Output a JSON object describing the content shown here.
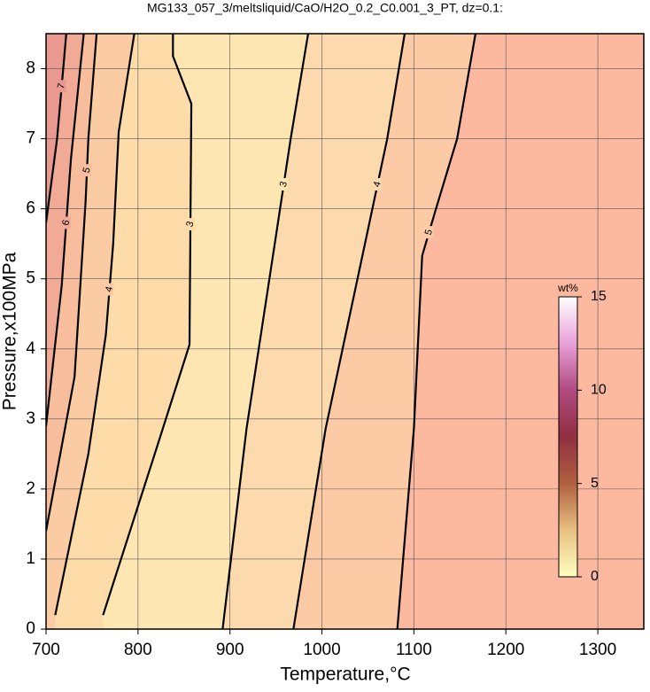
{
  "chart_data": {
    "type": "contour",
    "title": "MG133_057_3/meltsliquid/CaO/H2O_0.2_C0.001_3_PT, dz=0.1:",
    "x_label": "Temperature,°C",
    "y_label": "Pressure,x100MPa",
    "xlim": [
      700,
      1350
    ],
    "xticks": [
      700,
      800,
      900,
      1000,
      1100,
      1200,
      1300
    ],
    "ylim": [
      0,
      8.5
    ],
    "yticks": [
      0,
      1,
      2,
      3,
      4,
      5,
      6,
      7,
      8
    ],
    "grid": true,
    "background": "#fcb99f",
    "contours": [
      {
        "level": 5,
        "fill": "#fdcaa6",
        "x": [
          1082,
          1100,
          1109,
          1124,
          1147,
          1167
        ],
        "y": [
          0,
          2.86,
          5.33,
          6,
          7,
          8.5
        ]
      },
      {
        "level": 4,
        "fill": "#fdd9ae",
        "x": [
          969,
          1004,
          1050,
          1071,
          1090
        ],
        "y": [
          0,
          2.86,
          5.7,
          7,
          8.5
        ]
      },
      {
        "level": 3,
        "fill": "#fee6b3",
        "x": [
          892,
          918,
          951,
          966,
          985
        ],
        "y": [
          0,
          2.86,
          5.7,
          7,
          8.5
        ]
      },
      {
        "level": 3,
        "fill": "#fddcaa",
        "x": [
          762,
          816,
          856,
          858,
          838,
          838
        ],
        "y": [
          0.2,
          2.41,
          4.06,
          7.5,
          8.18,
          8.5
        ]
      },
      {
        "level": 4,
        "fill": "#fbcca4",
        "x": [
          710,
          746,
          765,
          773,
          779,
          796
        ],
        "y": [
          0.2,
          2.5,
          4.2,
          5.5,
          7.1,
          8.5
        ]
      },
      {
        "level": 5,
        "fill": "#f7bd9c",
        "x": [
          700,
          731,
          743,
          746,
          755
        ],
        "y": [
          1.4,
          3.6,
          6.1,
          7,
          8.5
        ]
      },
      {
        "level": 6,
        "fill": "#f1aa96",
        "x": [
          700,
          717,
          727,
          741
        ],
        "y": [
          2.9,
          4.9,
          6.7,
          8.5
        ]
      },
      {
        "level": 7,
        "fill": "#ea9990",
        "x": [
          700,
          712,
          722
        ],
        "y": [
          5.8,
          7,
          8.5
        ]
      }
    ],
    "colorbar": {
      "label": "wt%",
      "lim": [
        0,
        15
      ],
      "ticks": [
        0,
        5,
        10,
        15
      ],
      "colors": [
        "#ffffc0",
        "#e8c080",
        "#b06040",
        "#903040",
        "#b04a80",
        "#e8a0d8",
        "#ffffff"
      ]
    }
  }
}
